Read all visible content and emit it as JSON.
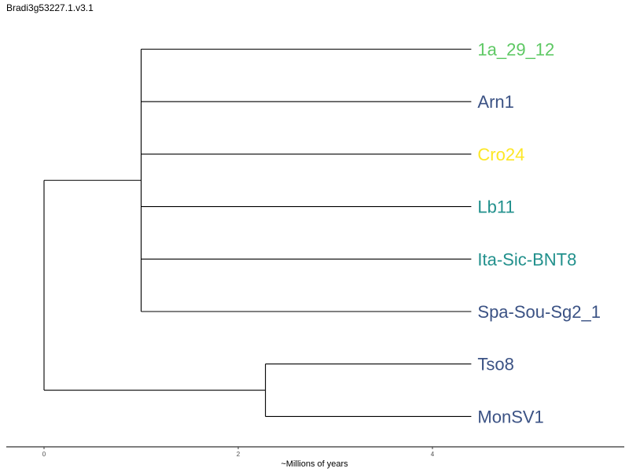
{
  "title": "Bradi3g53227.1.v3.1",
  "axis": {
    "label": "~Millions of years",
    "ticks": [
      0,
      2,
      4
    ],
    "range": [
      0,
      6
    ]
  },
  "colors": {
    "blue": "#3b5284",
    "green": "#5dc863",
    "yellow": "#fde725",
    "teal": "#21908c",
    "line": "#000000"
  },
  "tips": [
    {
      "label": "1a_29_12",
      "color": "#5dc863"
    },
    {
      "label": "Arn1",
      "color": "#3b5284"
    },
    {
      "label": "Cro24",
      "color": "#fde725"
    },
    {
      "label": "Lb11",
      "color": "#21908c"
    },
    {
      "label": "Ita-Sic-BNT8",
      "color": "#21908c"
    },
    {
      "label": "Spa-Sou-Sg2_1",
      "color": "#3b5284"
    },
    {
      "label": "Tso8",
      "color": "#3b5284"
    },
    {
      "label": "MonSV1",
      "color": "#3b5284"
    }
  ],
  "tree": {
    "age": 0,
    "children": [
      {
        "age": 1.0,
        "children": [
          0,
          1,
          2,
          3,
          4,
          5
        ]
      },
      {
        "age": 2.28,
        "children": [
          6,
          7
        ]
      }
    ],
    "tip_age": 4.4
  }
}
